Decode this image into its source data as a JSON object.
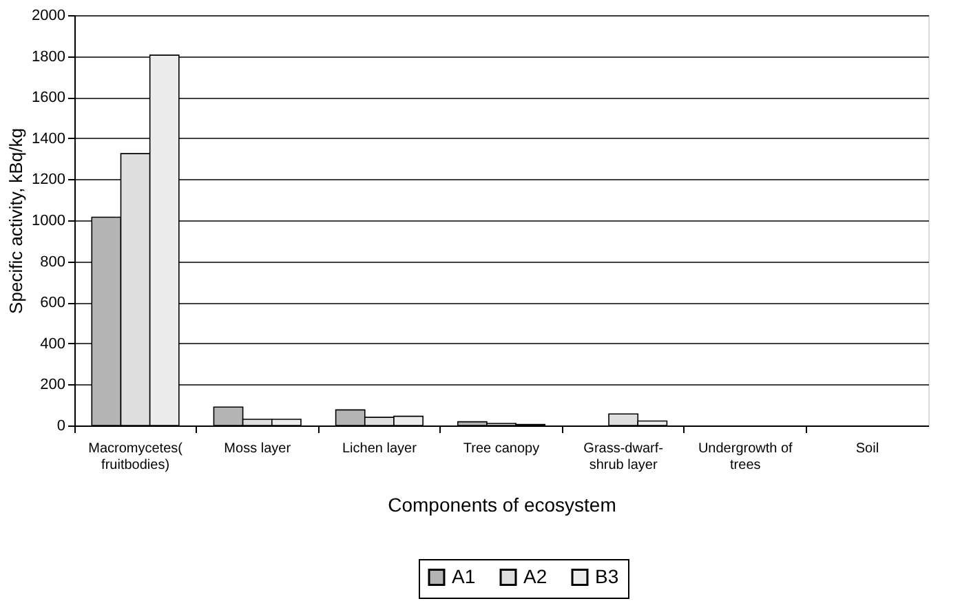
{
  "chart_data": {
    "type": "bar",
    "xlabel": "Components of ecosystem",
    "ylabel": "Specific activity, kBq/kg",
    "categories": [
      "Macromycetes( fruitbodies)",
      "Moss layer",
      "Lichen layer",
      "Tree canopy",
      "Grass-dwarf-shrub layer",
      "Undergrowth of trees",
      "Soil"
    ],
    "series": [
      {
        "name": "A1",
        "color": "#b4b4b4",
        "values": [
          1015,
          90,
          76,
          18,
          null,
          null,
          null
        ]
      },
      {
        "name": "A2",
        "color": "#dedede",
        "values": [
          1325,
          30,
          40,
          10,
          56,
          null,
          null
        ]
      },
      {
        "name": "B3",
        "color": "#ececec",
        "values": [
          1805,
          30,
          45,
          5,
          22,
          null,
          null
        ]
      }
    ],
    "ylim": [
      0,
      2000
    ],
    "yticks": [
      0,
      200,
      400,
      600,
      800,
      1000,
      1200,
      1400,
      1600,
      1800,
      2000
    ],
    "grid": "y",
    "legend": "bottom"
  }
}
